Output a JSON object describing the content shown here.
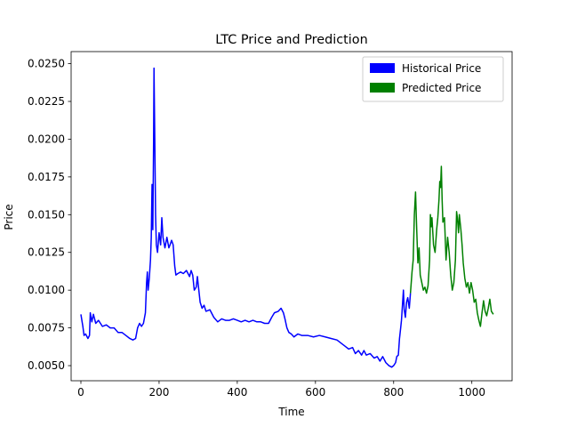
{
  "chart_data": {
    "type": "line",
    "title": "LTC Price and Prediction",
    "xlabel": "Time",
    "ylabel": "Price",
    "xlim": [
      -25,
      1103
    ],
    "ylim": [
      0.004,
      0.0258
    ],
    "xticks": [
      0,
      200,
      400,
      600,
      800,
      1000
    ],
    "yticks": [
      0.005,
      0.0075,
      0.01,
      0.0125,
      0.015,
      0.0175,
      0.02,
      0.0225,
      0.025
    ],
    "ytick_labels": [
      "0.0050",
      "0.0075",
      "0.0100",
      "0.0125",
      "0.0150",
      "0.0175",
      "0.0200",
      "0.0225",
      "0.0250"
    ],
    "grid": false,
    "legend_position": "top-right",
    "series": [
      {
        "name": "Historical Price",
        "color": "#0000ff",
        "points": [
          [
            0,
            0.0084
          ],
          [
            5,
            0.0076
          ],
          [
            8,
            0.007
          ],
          [
            12,
            0.0071
          ],
          [
            18,
            0.0068
          ],
          [
            22,
            0.007
          ],
          [
            24,
            0.0085
          ],
          [
            28,
            0.0079
          ],
          [
            32,
            0.0084
          ],
          [
            38,
            0.0078
          ],
          [
            45,
            0.008
          ],
          [
            55,
            0.0076
          ],
          [
            65,
            0.0077
          ],
          [
            75,
            0.0075
          ],
          [
            85,
            0.0075
          ],
          [
            95,
            0.0072
          ],
          [
            105,
            0.0072
          ],
          [
            115,
            0.007
          ],
          [
            125,
            0.0068
          ],
          [
            133,
            0.0067
          ],
          [
            140,
            0.0068
          ],
          [
            145,
            0.0075
          ],
          [
            150,
            0.0078
          ],
          [
            155,
            0.0076
          ],
          [
            160,
            0.0078
          ],
          [
            165,
            0.0085
          ],
          [
            168,
            0.0105
          ],
          [
            170,
            0.0112
          ],
          [
            172,
            0.01
          ],
          [
            175,
            0.0108
          ],
          [
            178,
            0.012
          ],
          [
            180,
            0.0135
          ],
          [
            182,
            0.017
          ],
          [
            184,
            0.014
          ],
          [
            186,
            0.02
          ],
          [
            187,
            0.0247
          ],
          [
            189,
            0.02
          ],
          [
            191,
            0.015
          ],
          [
            193,
            0.013
          ],
          [
            196,
            0.0125
          ],
          [
            200,
            0.0138
          ],
          [
            204,
            0.013
          ],
          [
            207,
            0.0148
          ],
          [
            210,
            0.0135
          ],
          [
            215,
            0.0128
          ],
          [
            220,
            0.0135
          ],
          [
            225,
            0.0128
          ],
          [
            228,
            0.013
          ],
          [
            232,
            0.0133
          ],
          [
            236,
            0.013
          ],
          [
            240,
            0.0116
          ],
          [
            243,
            0.011
          ],
          [
            248,
            0.0111
          ],
          [
            255,
            0.0112
          ],
          [
            262,
            0.0111
          ],
          [
            270,
            0.0113
          ],
          [
            278,
            0.0109
          ],
          [
            282,
            0.0113
          ],
          [
            286,
            0.011
          ],
          [
            290,
            0.01
          ],
          [
            295,
            0.0102
          ],
          [
            298,
            0.0109
          ],
          [
            300,
            0.0104
          ],
          [
            305,
            0.0092
          ],
          [
            310,
            0.0088
          ],
          [
            315,
            0.009
          ],
          [
            320,
            0.0086
          ],
          [
            330,
            0.0087
          ],
          [
            340,
            0.0082
          ],
          [
            350,
            0.0079
          ],
          [
            360,
            0.0081
          ],
          [
            370,
            0.008
          ],
          [
            380,
            0.008
          ],
          [
            390,
            0.0081
          ],
          [
            400,
            0.008
          ],
          [
            410,
            0.0079
          ],
          [
            420,
            0.008
          ],
          [
            430,
            0.0079
          ],
          [
            440,
            0.008
          ],
          [
            450,
            0.0079
          ],
          [
            460,
            0.0079
          ],
          [
            470,
            0.0078
          ],
          [
            480,
            0.0078
          ],
          [
            488,
            0.0082
          ],
          [
            495,
            0.0085
          ],
          [
            505,
            0.0086
          ],
          [
            512,
            0.0088
          ],
          [
            518,
            0.0085
          ],
          [
            522,
            0.0081
          ],
          [
            527,
            0.0075
          ],
          [
            532,
            0.0072
          ],
          [
            538,
            0.0071
          ],
          [
            545,
            0.0069
          ],
          [
            555,
            0.0071
          ],
          [
            565,
            0.007
          ],
          [
            580,
            0.007
          ],
          [
            595,
            0.0069
          ],
          [
            610,
            0.007
          ],
          [
            625,
            0.0069
          ],
          [
            640,
            0.0068
          ],
          [
            655,
            0.0067
          ],
          [
            665,
            0.0065
          ],
          [
            675,
            0.0063
          ],
          [
            685,
            0.0061
          ],
          [
            695,
            0.0062
          ],
          [
            702,
            0.0058
          ],
          [
            710,
            0.006
          ],
          [
            718,
            0.0057
          ],
          [
            724,
            0.006
          ],
          [
            730,
            0.0057
          ],
          [
            740,
            0.0058
          ],
          [
            750,
            0.0055
          ],
          [
            758,
            0.0056
          ],
          [
            765,
            0.0053
          ],
          [
            772,
            0.0056
          ],
          [
            780,
            0.0052
          ],
          [
            788,
            0.005
          ],
          [
            795,
            0.0049
          ],
          [
            800,
            0.005
          ],
          [
            805,
            0.0052
          ],
          [
            808,
            0.0056
          ],
          [
            812,
            0.0057
          ],
          [
            815,
            0.0068
          ],
          [
            818,
            0.0075
          ],
          [
            820,
            0.008
          ],
          [
            822,
            0.0088
          ],
          [
            825,
            0.01
          ],
          [
            827,
            0.0087
          ],
          [
            830,
            0.0082
          ],
          [
            833,
            0.0092
          ],
          [
            836,
            0.0095
          ],
          [
            840,
            0.0088
          ],
          [
            843,
            0.0098
          ]
        ]
      },
      {
        "name": "Predicted Price",
        "color": "#008000",
        "points": [
          [
            843,
            0.0098
          ],
          [
            847,
            0.0112
          ],
          [
            850,
            0.012
          ],
          [
            853,
            0.015
          ],
          [
            856,
            0.0165
          ],
          [
            859,
            0.014
          ],
          [
            862,
            0.0118
          ],
          [
            865,
            0.0128
          ],
          [
            868,
            0.011
          ],
          [
            872,
            0.0105
          ],
          [
            876,
            0.01
          ],
          [
            880,
            0.0102
          ],
          [
            884,
            0.0098
          ],
          [
            888,
            0.0103
          ],
          [
            892,
            0.012
          ],
          [
            894,
            0.015
          ],
          [
            896,
            0.0142
          ],
          [
            898,
            0.0148
          ],
          [
            902,
            0.013
          ],
          [
            906,
            0.0125
          ],
          [
            910,
            0.014
          ],
          [
            913,
            0.0148
          ],
          [
            916,
            0.016
          ],
          [
            918,
            0.0172
          ],
          [
            920,
            0.0168
          ],
          [
            922,
            0.0182
          ],
          [
            924,
            0.016
          ],
          [
            926,
            0.0145
          ],
          [
            930,
            0.0148
          ],
          [
            934,
            0.012
          ],
          [
            938,
            0.0135
          ],
          [
            942,
            0.0125
          ],
          [
            946,
            0.011
          ],
          [
            950,
            0.01
          ],
          [
            954,
            0.0105
          ],
          [
            958,
            0.012
          ],
          [
            961,
            0.0152
          ],
          [
            963,
            0.0148
          ],
          [
            966,
            0.0138
          ],
          [
            968,
            0.015
          ],
          [
            972,
            0.014
          ],
          [
            975,
            0.013
          ],
          [
            978,
            0.0118
          ],
          [
            982,
            0.0108
          ],
          [
            986,
            0.0102
          ],
          [
            990,
            0.0105
          ],
          [
            994,
            0.0098
          ],
          [
            998,
            0.0105
          ],
          [
            1002,
            0.01
          ],
          [
            1006,
            0.0092
          ],
          [
            1010,
            0.0094
          ],
          [
            1014,
            0.0085
          ],
          [
            1018,
            0.008
          ],
          [
            1022,
            0.0076
          ],
          [
            1026,
            0.0085
          ],
          [
            1030,
            0.0093
          ],
          [
            1034,
            0.0086
          ],
          [
            1038,
            0.0083
          ],
          [
            1042,
            0.0088
          ],
          [
            1046,
            0.0094
          ],
          [
            1050,
            0.0086
          ],
          [
            1055,
            0.0084
          ]
        ]
      }
    ]
  }
}
